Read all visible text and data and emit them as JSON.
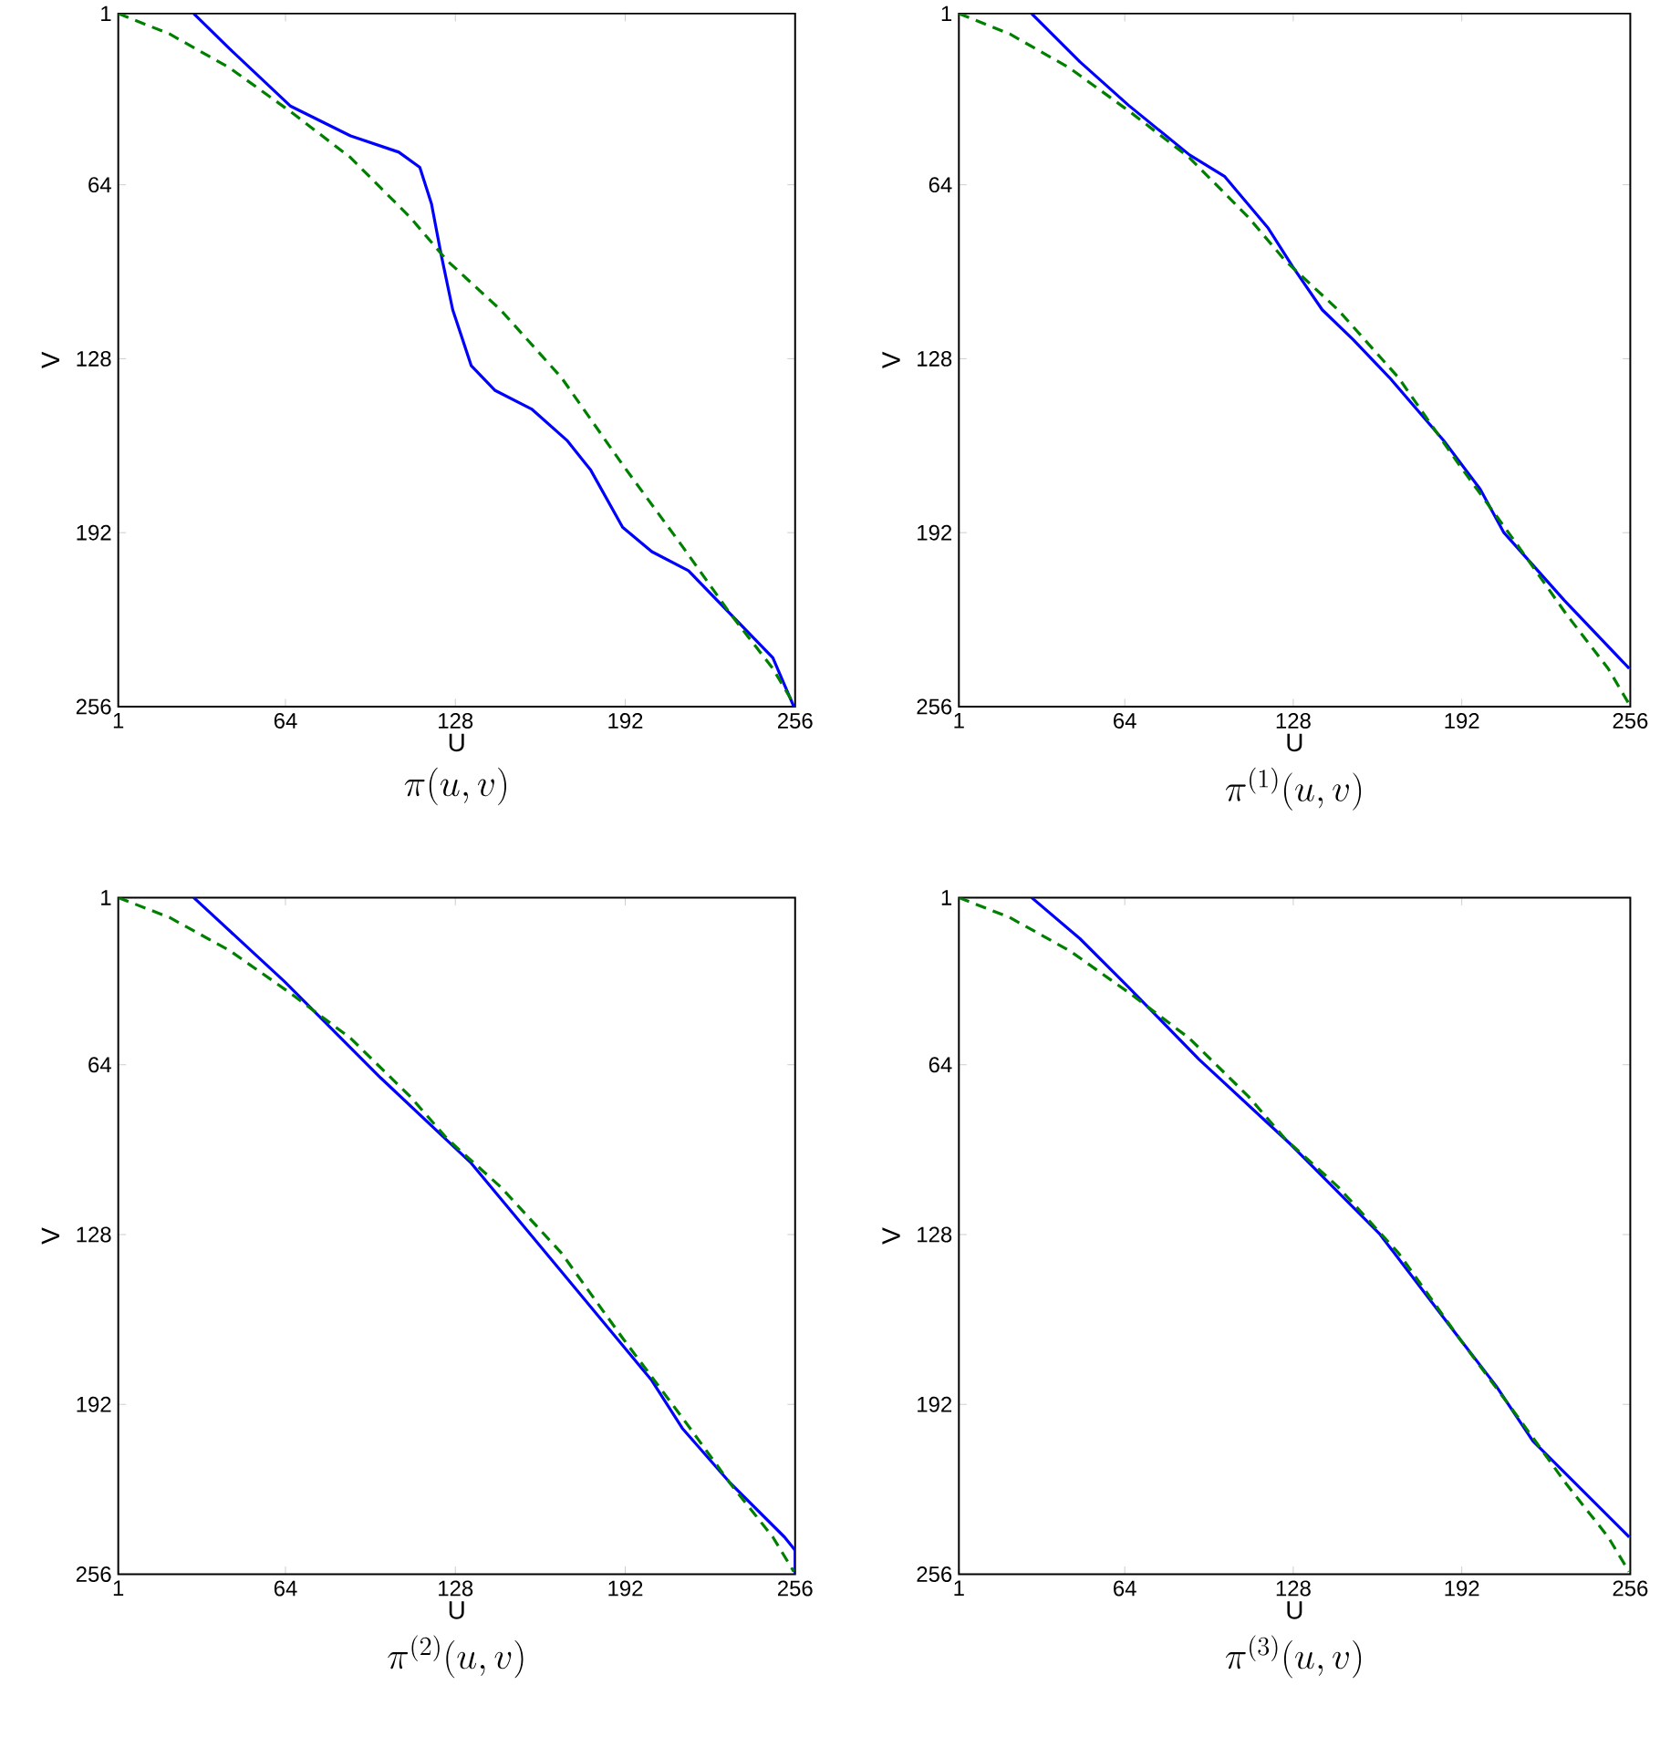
{
  "chart_data": [
    {
      "type": "line",
      "title": "\\pi(u,v)",
      "xlabel": "U",
      "ylabel": "V",
      "xlim": [
        1,
        256
      ],
      "ylim": [
        256,
        1
      ],
      "xticks": [
        1,
        64,
        128,
        192,
        256
      ],
      "yticks": [
        1,
        64,
        128,
        192,
        256
      ],
      "series": [
        {
          "color": "#0000ff",
          "line_style": "solid",
          "x": [
            29.4,
            43,
            65.8,
            88.5,
            106.7,
            114.6,
            119,
            122.6,
            127,
            134,
            143,
            156.7,
            170,
            179,
            191,
            202,
            215.8,
            231.7,
            247.6,
            255.5
          ],
          "values": [
            1,
            14,
            35,
            46,
            52,
            57.6,
            71,
            89.5,
            110,
            130.6,
            139.7,
            146.5,
            158,
            169,
            190,
            199,
            206,
            222,
            238,
            256
          ]
        },
        {
          "color": "#008000",
          "line_style": "dashed",
          "x": [
            1,
            20.3,
            43,
            65.8,
            88.5,
            111,
            125,
            145,
            168,
            191,
            213.5,
            231.7,
            247.6,
            255.5
          ],
          "values": [
            1,
            8.5,
            21,
            37,
            54,
            76,
            92,
            110,
            135,
            167,
            197,
            222,
            242,
            255
          ]
        }
      ]
    },
    {
      "type": "line",
      "title": "\\pi^{(1)}(u,v)",
      "xlabel": "U",
      "ylabel": "V",
      "xlim": [
        1,
        256
      ],
      "ylim": [
        256,
        1
      ],
      "xticks": [
        1,
        64,
        128,
        192,
        256
      ],
      "yticks": [
        1,
        64,
        128,
        192,
        256
      ],
      "series": [
        {
          "color": "#0000ff",
          "line_style": "solid",
          "x": [
            28.6,
            47,
            65.5,
            88.6,
            102,
            118.5,
            127.7,
            139,
            150.8,
            164.6,
            185,
            199,
            208,
            231,
            255.6
          ],
          "values": [
            1,
            18.8,
            34.8,
            53,
            61,
            80,
            94,
            110,
            121,
            135,
            158,
            176,
            192,
            217,
            242
          ]
        },
        {
          "color": "#008000",
          "line_style": "dashed",
          "x": [
            1,
            20.3,
            43,
            65.8,
            88.5,
            111,
            125,
            145,
            168,
            191,
            213.5,
            231.7,
            247.6,
            255.5
          ],
          "values": [
            1,
            8.5,
            21,
            37,
            54,
            76,
            92,
            110,
            135,
            167,
            197,
            222,
            242,
            255
          ]
        }
      ]
    },
    {
      "type": "line",
      "title": "\\pi^{(2)}(u,v)",
      "xlabel": "U",
      "ylabel": "V",
      "xlim": [
        1,
        256
      ],
      "ylim": [
        256,
        1
      ],
      "xticks": [
        1,
        64,
        128,
        192,
        256
      ],
      "yticks": [
        1,
        64,
        128,
        192,
        256
      ],
      "series": [
        {
          "color": "#0000ff",
          "line_style": "solid",
          "x": [
            29.4,
            63.5,
            99.9,
            133.9,
            168,
            202,
            213.5,
            231.7,
            252,
            256,
            256
          ],
          "values": [
            1,
            32.5,
            69,
            101,
            142,
            183,
            201,
            221.8,
            242,
            247,
            256
          ]
        },
        {
          "color": "#008000",
          "line_style": "dashed",
          "x": [
            1,
            20.3,
            43,
            65.8,
            88.5,
            111,
            125,
            145,
            168,
            191,
            213.5,
            231.7,
            247.6,
            255.5
          ],
          "values": [
            1,
            8.5,
            21,
            37,
            54,
            76,
            92,
            110,
            135,
            167,
            197,
            222,
            242,
            255
          ]
        }
      ]
    },
    {
      "type": "line",
      "title": "\\pi^{(3)}(u,v)",
      "xlabel": "U",
      "ylabel": "V",
      "xlim": [
        1,
        256
      ],
      "ylim": [
        256,
        1
      ],
      "xticks": [
        1,
        64,
        128,
        192,
        256
      ],
      "yticks": [
        1,
        64,
        128,
        192,
        256
      ],
      "series": [
        {
          "color": "#0000ff",
          "line_style": "solid",
          "x": [
            28.6,
            47,
            65.5,
            92.2,
            127,
            161,
            191,
            205,
            219,
            255.6
          ],
          "values": [
            1,
            16.5,
            34.8,
            62,
            94,
            128,
            167,
            185,
            205.8,
            242
          ]
        },
        {
          "color": "#008000",
          "line_style": "dashed",
          "x": [
            1,
            20.3,
            43,
            65.8,
            88.5,
            111,
            125,
            145,
            168,
            191,
            213.5,
            231.7,
            247.6,
            255.5
          ],
          "values": [
            1,
            8.5,
            21,
            37,
            54,
            76,
            92,
            110,
            135,
            167,
            197,
            222,
            242,
            255
          ]
        }
      ]
    }
  ]
}
